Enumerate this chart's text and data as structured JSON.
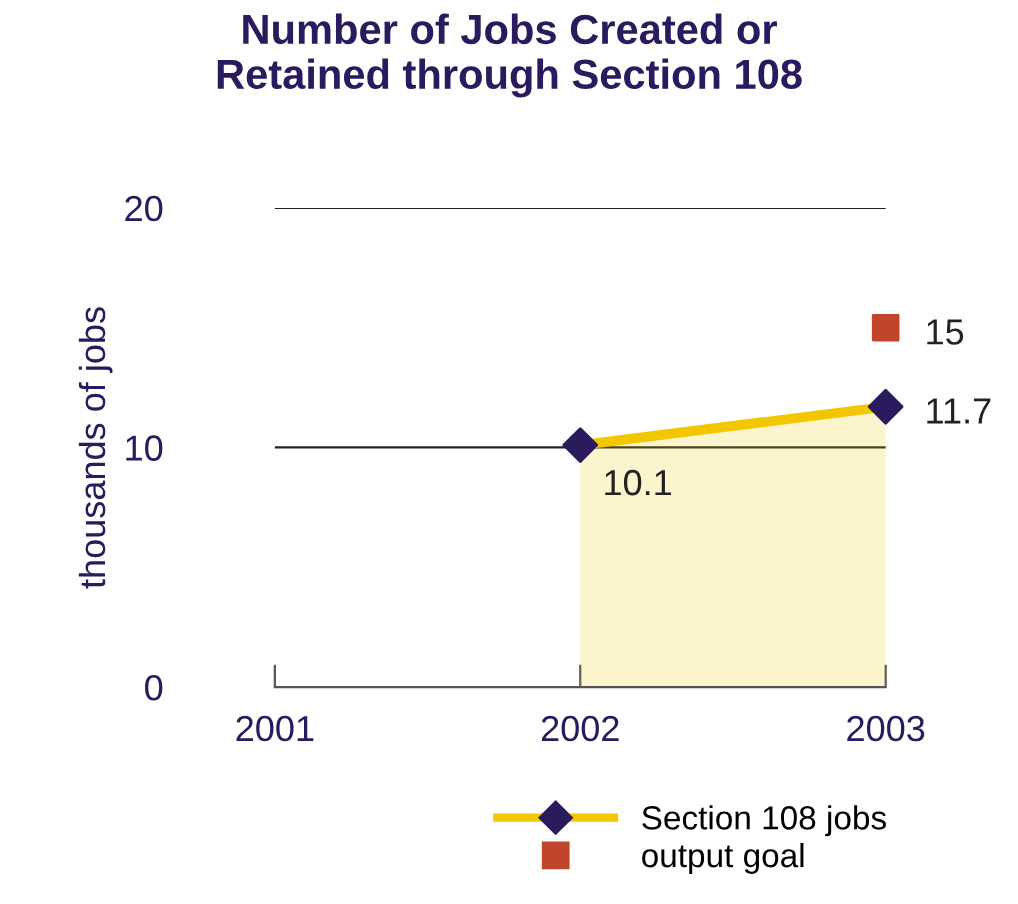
{
  "chart_data": {
    "type": "area",
    "title": "Number of Jobs Created or\nRetained through Section 108",
    "ylabel": "thousands of jobs",
    "categories": [
      "2001",
      "2002",
      "2003"
    ],
    "ylim": [
      0,
      20
    ],
    "yticks": [
      0,
      10,
      20
    ],
    "grid": "y",
    "legend": "bottom",
    "data_labels": true,
    "series": [
      {
        "name": "Section 108 jobs",
        "color": "#f2c700",
        "colors": [
          null,
          "#2a1a5e",
          "#2a1a5e"
        ],
        "marker": "diamond",
        "values": [
          null,
          10.1,
          11.7
        ]
      },
      {
        "name": "output goal",
        "type": "scatter",
        "color": "#c0452b",
        "marker": "square",
        "values": [
          null,
          null,
          15
        ]
      }
    ]
  }
}
